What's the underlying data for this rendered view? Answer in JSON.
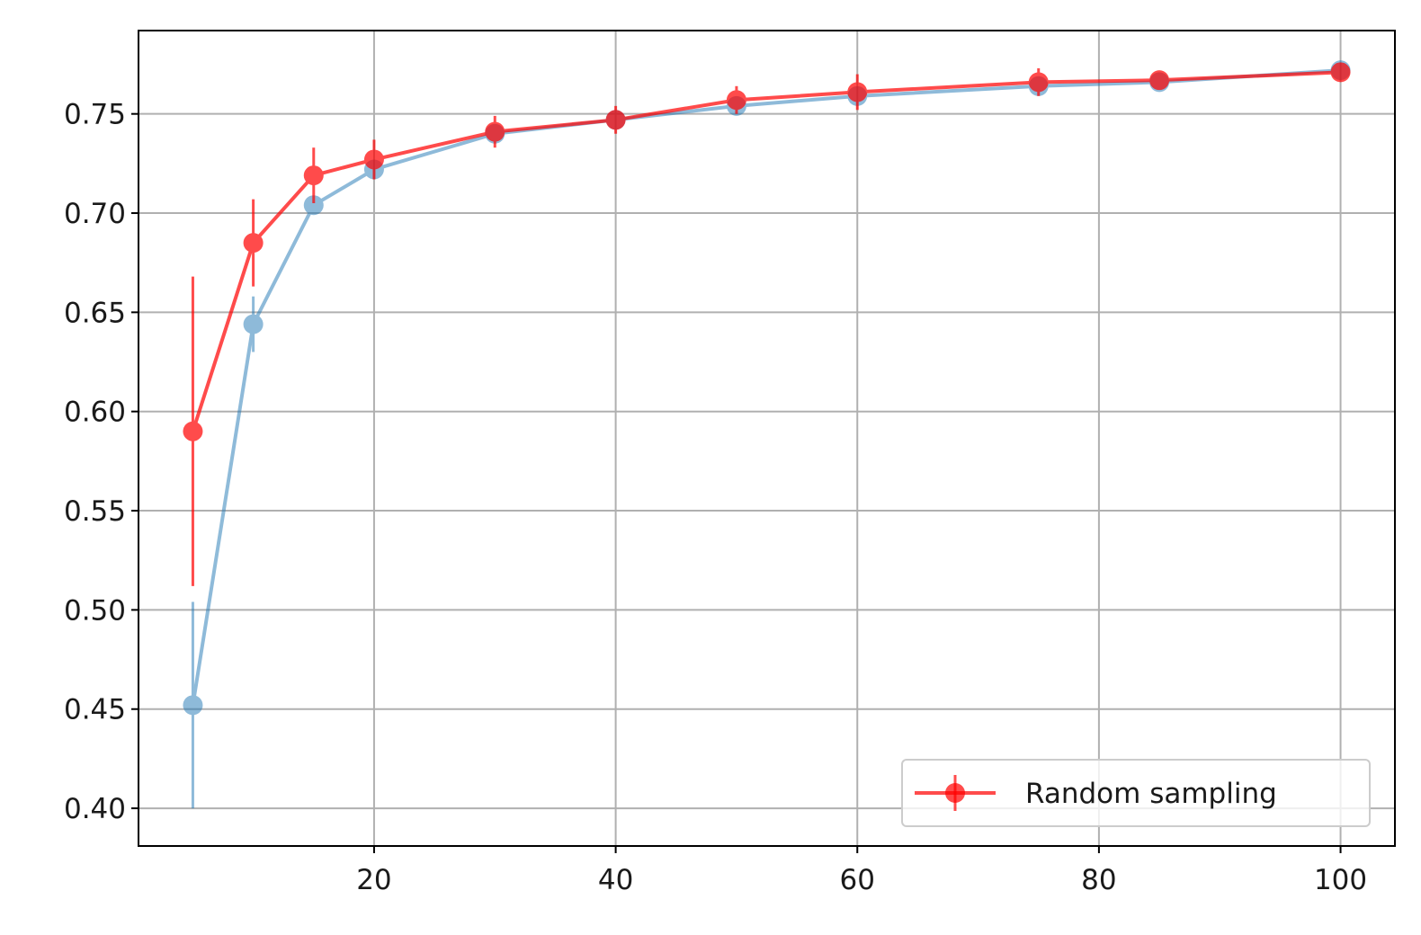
{
  "chart_data": {
    "type": "line",
    "title": "",
    "xlabel": "",
    "ylabel": "",
    "xlim": [
      0.5,
      104.5
    ],
    "ylim": [
      0.381,
      0.792
    ],
    "xticks": [
      20,
      40,
      60,
      80,
      100
    ],
    "xtick_labels": [
      "20",
      "40",
      "60",
      "80",
      "100"
    ],
    "yticks": [
      0.4,
      0.45,
      0.5,
      0.55,
      0.6,
      0.65,
      0.7,
      0.75
    ],
    "ytick_labels": [
      "0.40",
      "0.45",
      "0.50",
      "0.55",
      "0.60",
      "0.65",
      "0.70",
      "0.75"
    ],
    "grid": true,
    "legend_position": "bottom-right",
    "x": [
      5,
      10,
      15,
      20,
      30,
      40,
      50,
      60,
      75,
      85,
      100
    ],
    "series": [
      {
        "name": "",
        "color": "#1f77b4",
        "alpha": 0.5,
        "values": [
          0.452,
          0.644,
          0.704,
          0.722,
          0.74,
          0.747,
          0.754,
          0.759,
          0.764,
          0.766,
          0.772
        ],
        "errors": [
          0.052,
          0.014,
          0.004,
          0.003,
          0.002,
          0.002,
          0.002,
          0.002,
          0.002,
          0.002,
          0.001
        ]
      },
      {
        "name": "Random sampling",
        "color": "#ff0000",
        "alpha": 0.7,
        "values": [
          0.59,
          0.685,
          0.719,
          0.727,
          0.741,
          0.747,
          0.757,
          0.761,
          0.766,
          0.767,
          0.771
        ],
        "errors": [
          0.078,
          0.022,
          0.014,
          0.01,
          0.008,
          0.007,
          0.007,
          0.009,
          0.007,
          0.003,
          0.002
        ]
      }
    ]
  }
}
